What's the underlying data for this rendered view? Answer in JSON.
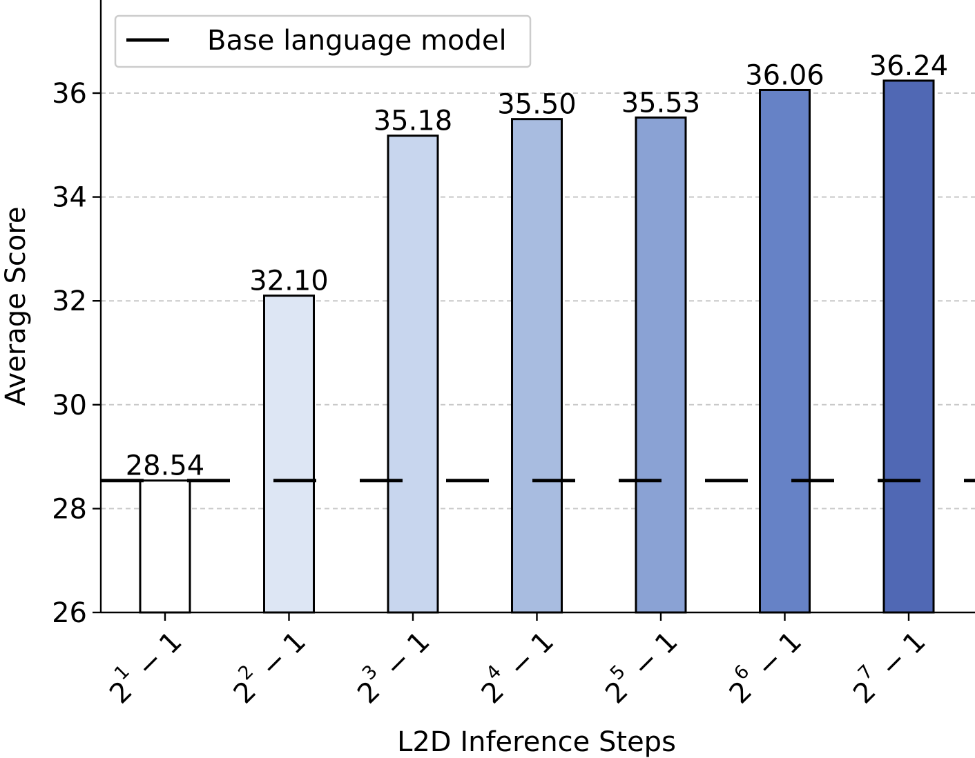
{
  "chart_data": {
    "type": "bar",
    "categories": [
      {
        "base": "2",
        "exp": "1",
        "suffix": " − 1"
      },
      {
        "base": "2",
        "exp": "2",
        "suffix": " − 1"
      },
      {
        "base": "2",
        "exp": "3",
        "suffix": " − 1"
      },
      {
        "base": "2",
        "exp": "4",
        "suffix": " − 1"
      },
      {
        "base": "2",
        "exp": "5",
        "suffix": " − 1"
      },
      {
        "base": "2",
        "exp": "6",
        "suffix": " − 1"
      },
      {
        "base": "2",
        "exp": "7",
        "suffix": " − 1"
      }
    ],
    "values": [
      28.54,
      32.1,
      35.18,
      35.5,
      35.53,
      36.06,
      36.24
    ],
    "value_labels": [
      "28.54",
      "32.10",
      "35.18",
      "35.50",
      "35.53",
      "36.06",
      "36.24"
    ],
    "bar_colors": [
      "#ffffff",
      "#dde6f4",
      "#c8d6ee",
      "#a8bce0",
      "#8aa2d4",
      "#6682c6",
      "#5068b4"
    ],
    "xlabel": "L2D Inference Steps",
    "ylabel": "Average Score",
    "ylim": [
      26,
      37.8
    ],
    "yticks": [
      26,
      28,
      30,
      32,
      34,
      36
    ],
    "grid": "horizontal dashed",
    "baseline": {
      "name": "Base language model",
      "value": 28.54,
      "style": "dashed",
      "color": "#000000"
    },
    "legend": {
      "position": "top-left",
      "entries": [
        "Base language model"
      ]
    }
  }
}
